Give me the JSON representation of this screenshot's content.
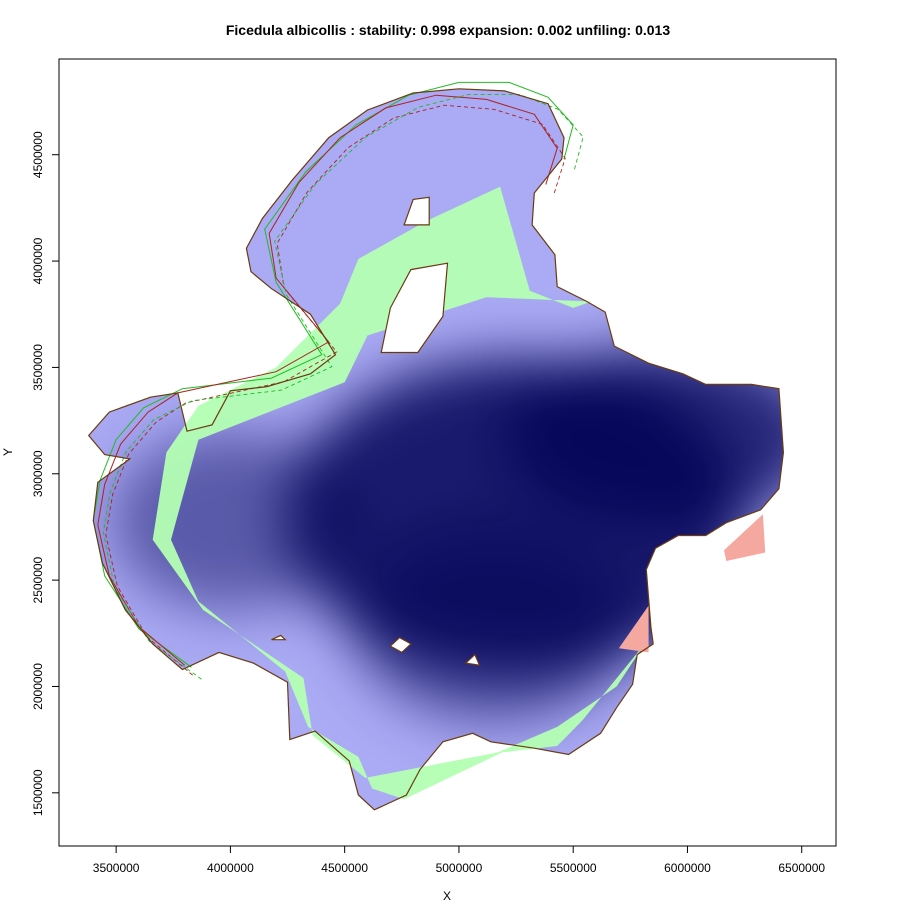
{
  "chart_data": {
    "type": "heatmap",
    "title": "Ficedula albicollis : stability: 0.998 expansion: 0.002 unfiling: 0.013",
    "xlabel": "X",
    "ylabel": "Y",
    "xlim": [
      3250000,
      6650000
    ],
    "ylim": [
      1250000,
      4950000
    ],
    "x_ticks": [
      3500000,
      4000000,
      4500000,
      5000000,
      5500000,
      6000000,
      6500000
    ],
    "x_tick_labels": [
      "3500000",
      "4000000",
      "4500000",
      "5000000",
      "5500000",
      "6000000",
      "6500000"
    ],
    "y_ticks": [
      1500000,
      2000000,
      2500000,
      3000000,
      3500000,
      4000000,
      4500000
    ],
    "y_tick_labels": [
      "1500000",
      "2000000",
      "2500000",
      "3000000",
      "3500000",
      "4000000",
      "4500000"
    ],
    "grid": false,
    "colors": {
      "stability_low": "#aaaaf5",
      "stability_high": "#000055",
      "expansion": "#b3ffb3",
      "unfilling": "#f4a8a0",
      "contour_native": "#aa2222",
      "contour_invaded": "#22bb22",
      "contour_combined": "#6b3a10"
    },
    "regions": {
      "expansion": [
        [
          3660000,
          2690000
        ],
        [
          3720000,
          3100000
        ],
        [
          3860000,
          3320000
        ],
        [
          4200000,
          3500000
        ],
        [
          4480000,
          3800000
        ],
        [
          4560000,
          4010000
        ],
        [
          4860000,
          4190000
        ],
        [
          5180000,
          4350000
        ],
        [
          5310000,
          3860000
        ],
        [
          5500000,
          3780000
        ],
        [
          5580000,
          3810000
        ],
        [
          5120000,
          3830000
        ],
        [
          4600000,
          3650000
        ],
        [
          4500000,
          3430000
        ],
        [
          3860000,
          3160000
        ],
        [
          3740000,
          2690000
        ],
        [
          3860000,
          2400000
        ],
        [
          4240000,
          2070000
        ],
        [
          4340000,
          1810000
        ],
        [
          4560000,
          1670000
        ],
        [
          4620000,
          1520000
        ],
        [
          4760000,
          1470000
        ],
        [
          5190000,
          1690000
        ],
        [
          5430000,
          1720000
        ],
        [
          5540000,
          1840000
        ],
        [
          5820000,
          2210000
        ],
        [
          5690000,
          2000000
        ],
        [
          5430000,
          1810000
        ],
        [
          5170000,
          1690000
        ],
        [
          4590000,
          1570000
        ],
        [
          4360000,
          1770000
        ],
        [
          4320000,
          2040000
        ],
        [
          3880000,
          2360000
        ],
        [
          3660000,
          2690000
        ]
      ],
      "unfilling": [
        [
          5700000,
          2180000
        ],
        [
          5830000,
          2380000
        ],
        [
          5830000,
          2160000
        ],
        [
          5700000,
          2180000
        ],
        [
          6160000,
          2640000
        ],
        [
          6330000,
          2810000
        ],
        [
          6340000,
          2630000
        ],
        [
          6170000,
          2590000
        ]
      ],
      "stability_centers": [
        {
          "x": 5250000,
          "y": 2800000,
          "weight": 1.0
        },
        {
          "x": 5900000,
          "y": 3180000,
          "weight": 0.9
        },
        {
          "x": 4000000,
          "y": 2780000,
          "weight": 0.55
        },
        {
          "x": 5150000,
          "y": 2300000,
          "weight": 0.6
        }
      ]
    },
    "contours": {
      "combined": [
        [
          3790000,
          2080000
        ],
        [
          3660000,
          2200000
        ],
        [
          3540000,
          2360000
        ],
        [
          3440000,
          2580000
        ],
        [
          3400000,
          2780000
        ],
        [
          3420000,
          2960000
        ],
        [
          3560000,
          3070000
        ],
        [
          3450000,
          3090000
        ],
        [
          3380000,
          3180000
        ],
        [
          3470000,
          3290000
        ],
        [
          3650000,
          3360000
        ],
        [
          3770000,
          3380000
        ],
        [
          3810000,
          3200000
        ],
        [
          3920000,
          3230000
        ],
        [
          4000000,
          3390000
        ],
        [
          4160000,
          3410000
        ],
        [
          4350000,
          3470000
        ],
        [
          4460000,
          3560000
        ],
        [
          4350000,
          3750000
        ],
        [
          4180000,
          3870000
        ],
        [
          4090000,
          3950000
        ],
        [
          4070000,
          4060000
        ],
        [
          4140000,
          4200000
        ],
        [
          4270000,
          4380000
        ],
        [
          4430000,
          4580000
        ],
        [
          4600000,
          4710000
        ],
        [
          4800000,
          4790000
        ],
        [
          5000000,
          4810000
        ],
        [
          5200000,
          4800000
        ],
        [
          5390000,
          4740000
        ],
        [
          5460000,
          4580000
        ],
        [
          5450000,
          4480000
        ],
        [
          5330000,
          4320000
        ],
        [
          5320000,
          4170000
        ],
        [
          5420000,
          4030000
        ],
        [
          5430000,
          3880000
        ],
        [
          5560000,
          3810000
        ],
        [
          5640000,
          3760000
        ],
        [
          5680000,
          3600000
        ],
        [
          5830000,
          3520000
        ],
        [
          5980000,
          3470000
        ],
        [
          6080000,
          3420000
        ],
        [
          6280000,
          3420000
        ],
        [
          6400000,
          3400000
        ],
        [
          6420000,
          3100000
        ],
        [
          6400000,
          2930000
        ],
        [
          6320000,
          2830000
        ],
        [
          6170000,
          2770000
        ],
        [
          6080000,
          2710000
        ],
        [
          5960000,
          2710000
        ],
        [
          5860000,
          2650000
        ],
        [
          5820000,
          2550000
        ],
        [
          5840000,
          2280000
        ],
        [
          5850000,
          2200000
        ],
        [
          5780000,
          2150000
        ],
        [
          5760000,
          2010000
        ],
        [
          5690000,
          1900000
        ],
        [
          5620000,
          1780000
        ],
        [
          5480000,
          1680000
        ],
        [
          5330000,
          1710000
        ],
        [
          5140000,
          1740000
        ],
        [
          5060000,
          1780000
        ],
        [
          4930000,
          1740000
        ],
        [
          4830000,
          1610000
        ],
        [
          4770000,
          1490000
        ],
        [
          4630000,
          1420000
        ],
        [
          4560000,
          1490000
        ],
        [
          4520000,
          1650000
        ],
        [
          4370000,
          1790000
        ],
        [
          4260000,
          1750000
        ],
        [
          4250000,
          2020000
        ],
        [
          4100000,
          2110000
        ],
        [
          3950000,
          2160000
        ],
        [
          3790000,
          2080000
        ]
      ],
      "combined_holes": [
        [
          [
            4760000,
            4170000
          ],
          [
            4800000,
            4290000
          ],
          [
            4870000,
            4300000
          ],
          [
            4870000,
            4170000
          ],
          [
            4760000,
            4170000
          ]
        ],
        [
          [
            4660000,
            3570000
          ],
          [
            4700000,
            3780000
          ],
          [
            4790000,
            3960000
          ],
          [
            4950000,
            3990000
          ],
          [
            4930000,
            3740000
          ],
          [
            4820000,
            3570000
          ],
          [
            4660000,
            3570000
          ]
        ],
        [
          [
            4700000,
            2190000
          ],
          [
            4740000,
            2230000
          ],
          [
            4790000,
            2200000
          ],
          [
            4750000,
            2160000
          ],
          [
            4700000,
            2190000
          ]
        ],
        [
          [
            5030000,
            2110000
          ],
          [
            5070000,
            2150000
          ],
          [
            5090000,
            2100000
          ],
          [
            5030000,
            2110000
          ]
        ],
        [
          [
            4180000,
            2220000
          ],
          [
            4220000,
            2240000
          ],
          [
            4240000,
            2220000
          ],
          [
            4180000,
            2220000
          ]
        ]
      ],
      "native": [
        [
          3800000,
          2100000
        ],
        [
          3600000,
          2280000
        ],
        [
          3470000,
          2520000
        ],
        [
          3420000,
          2760000
        ],
        [
          3450000,
          2950000
        ],
        [
          3520000,
          3140000
        ],
        [
          3640000,
          3290000
        ],
        [
          3770000,
          3380000
        ],
        [
          4200000,
          3480000
        ],
        [
          4430000,
          3620000
        ],
        [
          4200000,
          3920000
        ],
        [
          4170000,
          4130000
        ],
        [
          4300000,
          4370000
        ],
        [
          4480000,
          4580000
        ],
        [
          4680000,
          4720000
        ],
        [
          4900000,
          4780000
        ],
        [
          5120000,
          4760000
        ],
        [
          5330000,
          4690000
        ],
        [
          5430000,
          4530000
        ],
        [
          5380000,
          4360000
        ]
      ],
      "invaded": [
        [
          3830000,
          2090000
        ],
        [
          3600000,
          2270000
        ],
        [
          3450000,
          2520000
        ],
        [
          3400000,
          2780000
        ],
        [
          3430000,
          2970000
        ],
        [
          3500000,
          3160000
        ],
        [
          3620000,
          3310000
        ],
        [
          3790000,
          3400000
        ],
        [
          4180000,
          3450000
        ],
        [
          4400000,
          3560000
        ],
        [
          4200000,
          3900000
        ],
        [
          4150000,
          4150000
        ],
        [
          4330000,
          4420000
        ],
        [
          4550000,
          4640000
        ],
        [
          4780000,
          4780000
        ],
        [
          5000000,
          4840000
        ],
        [
          5220000,
          4840000
        ],
        [
          5390000,
          4770000
        ],
        [
          5500000,
          4640000
        ],
        [
          5460000,
          4480000
        ]
      ]
    }
  }
}
